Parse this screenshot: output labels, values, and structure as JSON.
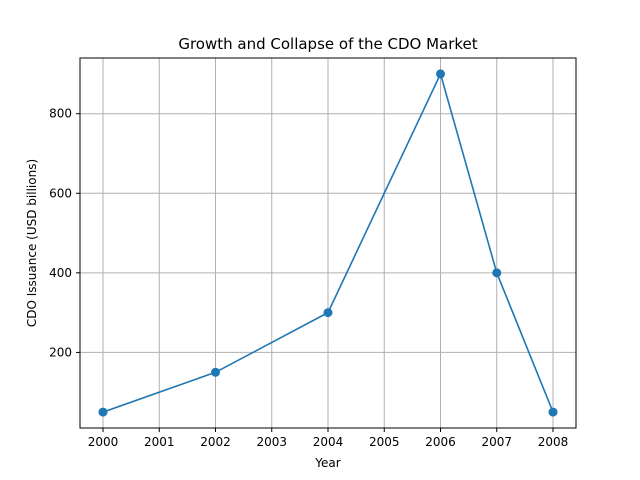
{
  "chart_data": {
    "type": "line",
    "title": "Growth and Collapse of the CDO Market",
    "xlabel": "Year",
    "ylabel": "CDO Issuance (USD billions)",
    "x": [
      2000,
      2002,
      2004,
      2006,
      2007,
      2008
    ],
    "series": [
      {
        "values": [
          50,
          150,
          300,
          900,
          400,
          50
        ]
      }
    ],
    "xticks": [
      "2000",
      "2001",
      "2002",
      "2003",
      "2004",
      "2005",
      "2006",
      "2007",
      "2008"
    ],
    "yticks": [
      200,
      400,
      600,
      800
    ],
    "ylim": [
      10,
      940
    ],
    "grid": true,
    "line_color": "#1f77b4",
    "grid_color": "#b0b0b0"
  }
}
